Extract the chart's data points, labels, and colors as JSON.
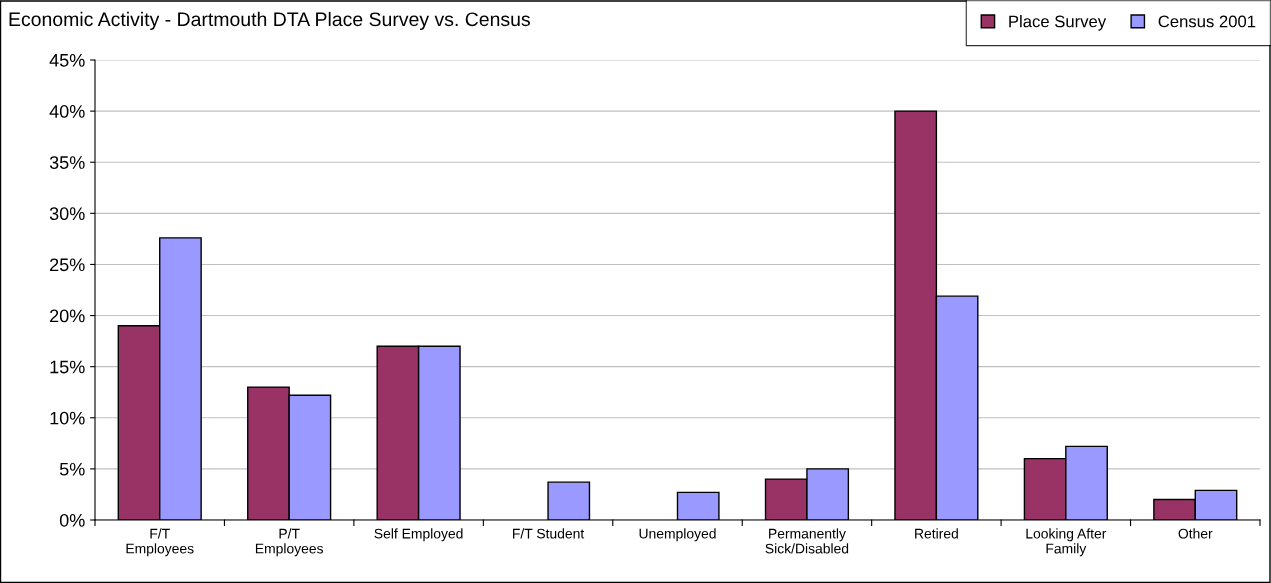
{
  "chart_data": {
    "type": "bar",
    "title": "Economic Activity - Dartmouth DTA Place Survey vs. Census",
    "categories": [
      "F/T\nEmployees",
      "P/T\nEmployees",
      "Self Employed",
      "F/T Student",
      "Unemployed",
      "Permanently\nSick/Disabled",
      "Retired",
      "Looking After\nFamily",
      "Other"
    ],
    "series": [
      {
        "name": "Place Survey",
        "color": "#993366",
        "values": [
          19,
          13,
          17,
          null,
          null,
          4,
          40,
          6,
          2
        ]
      },
      {
        "name": "Census 2001",
        "color": "#9999ff",
        "values": [
          27.6,
          12.2,
          17,
          3.7,
          2.7,
          5,
          21.9,
          7.2,
          2.9
        ]
      }
    ],
    "ylim": [
      0,
      45
    ],
    "yticks": [
      {
        "value": 0,
        "label": "0%"
      },
      {
        "value": 5,
        "label": "5%"
      },
      {
        "value": 10,
        "label": "10%"
      },
      {
        "value": 15,
        "label": "15%"
      },
      {
        "value": 20,
        "label": "20%"
      },
      {
        "value": 25,
        "label": "25%"
      },
      {
        "value": 30,
        "label": "30%"
      },
      {
        "value": 35,
        "label": "35%"
      },
      {
        "value": 40,
        "label": "40%"
      },
      {
        "value": 45,
        "label": "45%"
      }
    ],
    "grid": "y",
    "legend": "top right"
  }
}
